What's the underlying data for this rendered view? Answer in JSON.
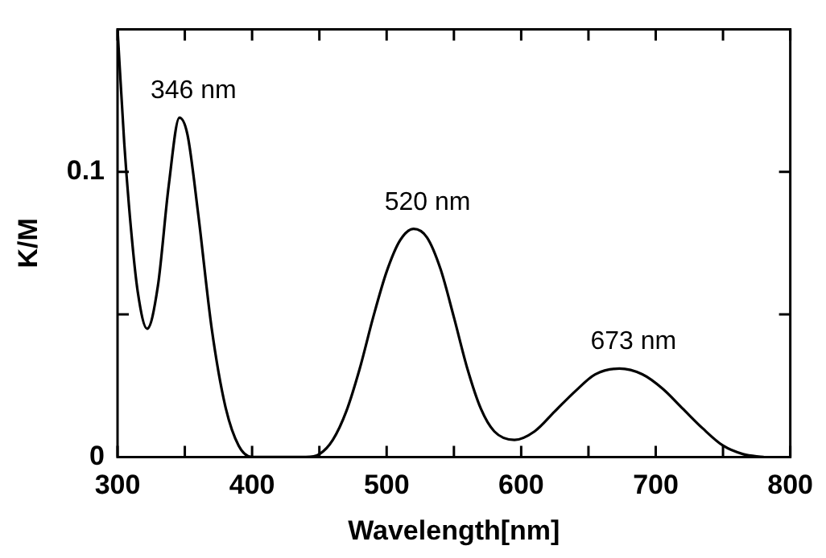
{
  "chart_data": {
    "type": "line",
    "xlabel": "Wavelength[nm]",
    "ylabel": "K/M",
    "x": [
      300,
      305,
      310,
      315,
      322,
      330,
      338,
      346,
      352,
      360,
      370,
      380,
      390,
      400,
      420,
      440,
      450,
      460,
      470,
      480,
      490,
      500,
      510,
      520,
      530,
      540,
      550,
      560,
      570,
      580,
      595,
      610,
      625,
      640,
      655,
      673,
      690,
      705,
      720,
      735,
      750,
      765,
      780
    ],
    "series": [
      {
        "color": "#000000",
        "values": [
          0.15,
          0.11,
          0.08,
          0.058,
          0.045,
          0.06,
          0.095,
          0.119,
          0.113,
          0.085,
          0.045,
          0.018,
          0.004,
          0,
          0,
          0,
          0.001,
          0.006,
          0.016,
          0.031,
          0.049,
          0.065,
          0.076,
          0.08,
          0.077,
          0.066,
          0.049,
          0.031,
          0.017,
          0.009,
          0.006,
          0.009,
          0.016,
          0.023,
          0.029,
          0.031,
          0.029,
          0.024,
          0.017,
          0.01,
          0.004,
          0.001,
          0
        ]
      }
    ],
    "xlim": [
      300,
      800
    ],
    "xticks": [
      300,
      {
        "value": 350,
        "label": null
      },
      400,
      {
        "value": 450,
        "label": null
      },
      500,
      {
        "value": 550,
        "label": null
      },
      600,
      {
        "value": 650,
        "label": null
      },
      700,
      {
        "value": 750,
        "label": null
      },
      800
    ],
    "ylim": [
      0,
      0.15
    ],
    "yticks": [
      0,
      {
        "value": 0.05,
        "label": null
      },
      0.1
    ],
    "annotations": [
      {
        "text": "346 nm",
        "x": 346,
        "y": 0.119
      },
      {
        "text": "520 nm",
        "x": 520,
        "y": 0.08
      },
      {
        "text": "673 nm",
        "x": 673,
        "y": 0.031
      }
    ],
    "grid": false,
    "legend": false,
    "marker": "none",
    "line_style": "solid"
  }
}
